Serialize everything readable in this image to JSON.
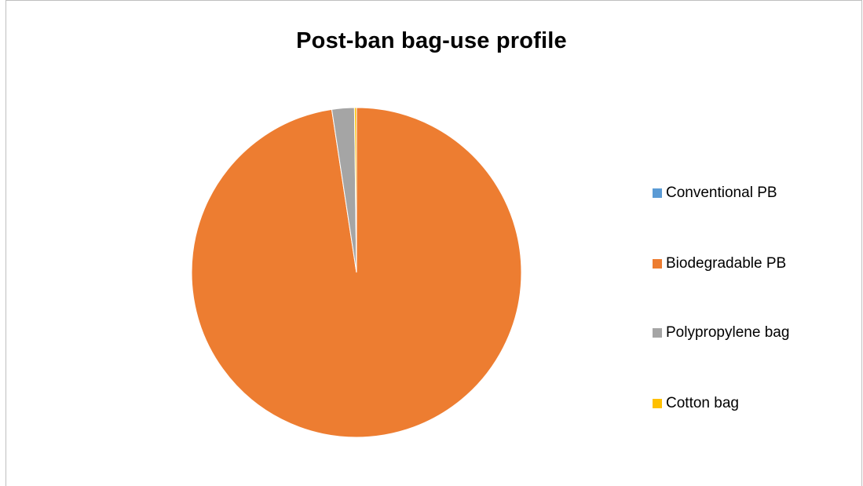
{
  "chart_data": {
    "type": "pie",
    "title": "Post-ban bag-use profile",
    "legend_position": "right",
    "start_angle_deg": 0,
    "direction": "clockwise",
    "slices": [
      {
        "name": "Conventional PB",
        "value": 0.0,
        "color": "#5b9bd5"
      },
      {
        "name": "Biodegradable PB",
        "value": 97.6,
        "color": "#ed7d31"
      },
      {
        "name": "Polypropylene bag",
        "value": 2.2,
        "color": "#a5a5a5"
      },
      {
        "name": "Cotton bag",
        "value": 0.2,
        "color": "#ffc000"
      }
    ]
  }
}
